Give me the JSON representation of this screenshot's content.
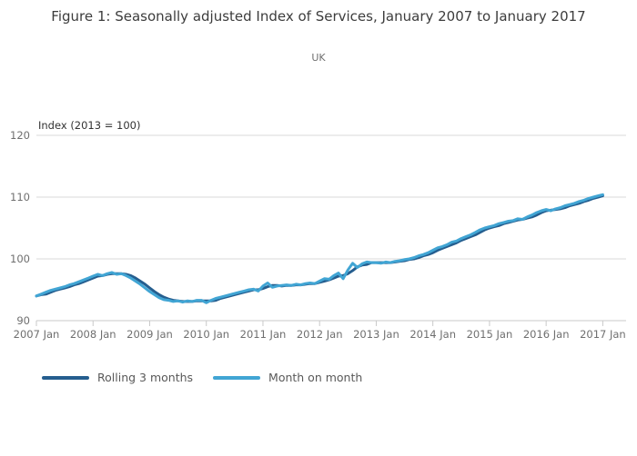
{
  "title": "Figure 1: Seasonally adjusted Index of Services, January 2007 to January 2017",
  "subtitle": "UK",
  "chart_data": {
    "type": "line",
    "title": "Figure 1: Seasonally adjusted Index of Services, January 2007 to January 2017",
    "subtitle": "UK",
    "ylabel": "Index (2013 = 100)",
    "xlabel": "",
    "x_frequency": "monthly",
    "x_range": [
      "2007 Jan",
      "2017 Jan"
    ],
    "x_tick_labels": [
      "2007 Jan",
      "2008 Jan",
      "2009 Jan",
      "2010 Jan",
      "2011 Jan",
      "2012 Jan",
      "2013 Jan",
      "2014 Jan",
      "2015 Jan",
      "2016 Jan",
      "2017 Jan"
    ],
    "yticks": [
      90,
      100,
      110,
      120
    ],
    "ylim": [
      90,
      120
    ],
    "grid": true,
    "legend_position": "bottom-left",
    "axis_color": "#c9c9c9",
    "gridline_color": "#d9d9d9",
    "tick_label_color": "#6f6f6f",
    "series": [
      {
        "name": "Rolling 3 months",
        "color": "#255e8f",
        "values": [
          94.0,
          94.2,
          94.3,
          94.6,
          94.9,
          95.1,
          95.3,
          95.5,
          95.8,
          96.0,
          96.3,
          96.6,
          96.9,
          97.2,
          97.3,
          97.5,
          97.6,
          97.6,
          97.6,
          97.5,
          97.3,
          96.9,
          96.4,
          95.9,
          95.3,
          94.7,
          94.2,
          93.8,
          93.5,
          93.3,
          93.2,
          93.1,
          93.1,
          93.1,
          93.2,
          93.2,
          93.2,
          93.2,
          93.3,
          93.6,
          93.8,
          94.0,
          94.2,
          94.4,
          94.6,
          94.8,
          95.0,
          95.0,
          95.2,
          95.5,
          95.7,
          95.7,
          95.6,
          95.7,
          95.7,
          95.8,
          95.8,
          95.9,
          96.0,
          96.0,
          96.2,
          96.4,
          96.6,
          96.9,
          97.2,
          97.3,
          97.6,
          98.1,
          98.7,
          99.0,
          99.1,
          99.4,
          99.4,
          99.4,
          99.4,
          99.4,
          99.5,
          99.6,
          99.7,
          99.9,
          100.0,
          100.2,
          100.5,
          100.7,
          101.0,
          101.4,
          101.7,
          102.0,
          102.3,
          102.6,
          103.0,
          103.3,
          103.6,
          103.9,
          104.3,
          104.7,
          105.0,
          105.2,
          105.4,
          105.7,
          105.9,
          106.1,
          106.3,
          106.4,
          106.6,
          106.8,
          107.1,
          107.5,
          107.8,
          107.9,
          108.0,
          108.1,
          108.3,
          108.6,
          108.8,
          109.0,
          109.3,
          109.5,
          109.8,
          110.0,
          110.2
        ]
      },
      {
        "name": "Month on month",
        "color": "#41a5d4",
        "values": [
          94.0,
          94.3,
          94.6,
          94.9,
          95.1,
          95.3,
          95.5,
          95.8,
          96.0,
          96.3,
          96.6,
          96.9,
          97.2,
          97.5,
          97.3,
          97.6,
          97.8,
          97.5,
          97.6,
          97.3,
          96.9,
          96.4,
          95.9,
          95.3,
          94.7,
          94.2,
          93.7,
          93.4,
          93.3,
          93.1,
          93.2,
          93.0,
          93.2,
          93.1,
          93.3,
          93.3,
          92.9,
          93.3,
          93.6,
          93.8,
          94.0,
          94.2,
          94.4,
          94.6,
          94.8,
          95.0,
          95.1,
          94.8,
          95.6,
          96.1,
          95.4,
          95.6,
          95.7,
          95.8,
          95.7,
          95.9,
          95.8,
          96.0,
          96.1,
          96.0,
          96.4,
          96.8,
          96.7,
          97.3,
          97.7,
          96.8,
          98.2,
          99.3,
          98.6,
          99.2,
          99.5,
          99.4,
          99.4,
          99.3,
          99.5,
          99.4,
          99.6,
          99.7,
          99.9,
          100.0,
          100.2,
          100.5,
          100.7,
          101.0,
          101.4,
          101.8,
          102.0,
          102.3,
          102.7,
          102.9,
          103.3,
          103.6,
          103.9,
          104.3,
          104.7,
          105.0,
          105.2,
          105.4,
          105.7,
          105.9,
          106.1,
          106.2,
          106.5,
          106.4,
          106.8,
          107.1,
          107.5,
          107.8,
          108.0,
          107.8,
          108.1,
          108.3,
          108.6,
          108.8,
          109.0,
          109.3,
          109.5,
          109.8,
          110.0,
          110.2,
          110.4
        ]
      }
    ]
  },
  "legend": {
    "items": [
      "Rolling 3 months",
      "Month on month"
    ]
  }
}
